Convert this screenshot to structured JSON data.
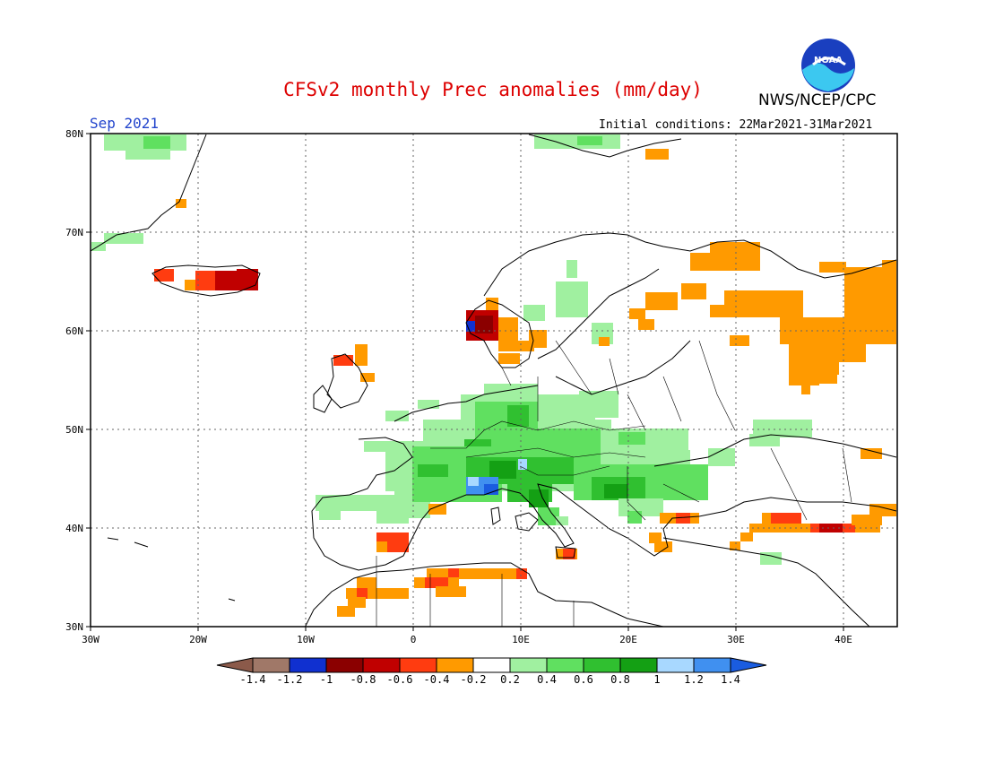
{
  "header": {
    "title": "CFSv2 monthly Prec anomalies (mm/day)",
    "month": "Sep 2021",
    "initial_conditions": "Initial conditions: 22Mar2021-31Mar2021",
    "agency": "NWS/NCEP/CPC",
    "logo_text": "NOAA"
  },
  "map": {
    "region": "Europe",
    "lon_range": [
      -30,
      45
    ],
    "lat_range": [
      30,
      80
    ],
    "lat_ticks": [
      "80N",
      "70N",
      "60N",
      "50N",
      "40N",
      "30N"
    ],
    "lon_ticks": [
      "30W",
      "20W",
      "10W",
      "0",
      "10E",
      "20E",
      "30E",
      "40E"
    ],
    "grid": true,
    "anomaly_areas": [
      {
        "name": "central-europe-wet",
        "level": 0.5
      },
      {
        "name": "alps-wet",
        "level": 0.9
      },
      {
        "name": "balkans-wet",
        "level": 0.5
      },
      {
        "name": "scandinavia-wet",
        "level": 0.3
      },
      {
        "name": "greenland-wet",
        "level": 0.3
      },
      {
        "name": "svalbard-wet",
        "level": 0.3
      },
      {
        "name": "iceland-dry",
        "level": -0.7
      },
      {
        "name": "west-norway-dry",
        "level": -0.9
      },
      {
        "name": "north-russia-dry",
        "level": -0.3
      },
      {
        "name": "turkey-dry",
        "level": -0.6
      },
      {
        "name": "north-africa-dry",
        "level": -0.4
      },
      {
        "name": "spain-dry",
        "level": -0.5
      }
    ]
  },
  "colorbar": {
    "labels": [
      "-1.4",
      "-1.2",
      "-1",
      "-0.8",
      "-0.6",
      "-0.4",
      "-0.2",
      "0.2",
      "0.4",
      "0.6",
      "0.8",
      "1",
      "1.2",
      "1.4"
    ],
    "colors": [
      "#8b5a4a",
      "#a07868",
      "#1030d0",
      "#8b0000",
      "#c00000",
      "#ff3c10",
      "#ff9a00",
      "#ffffff",
      "#a0f0a0",
      "#60e060",
      "#30c030",
      "#14a014",
      "#a8d8ff",
      "#4090f0",
      "#1a5ce0"
    ]
  }
}
